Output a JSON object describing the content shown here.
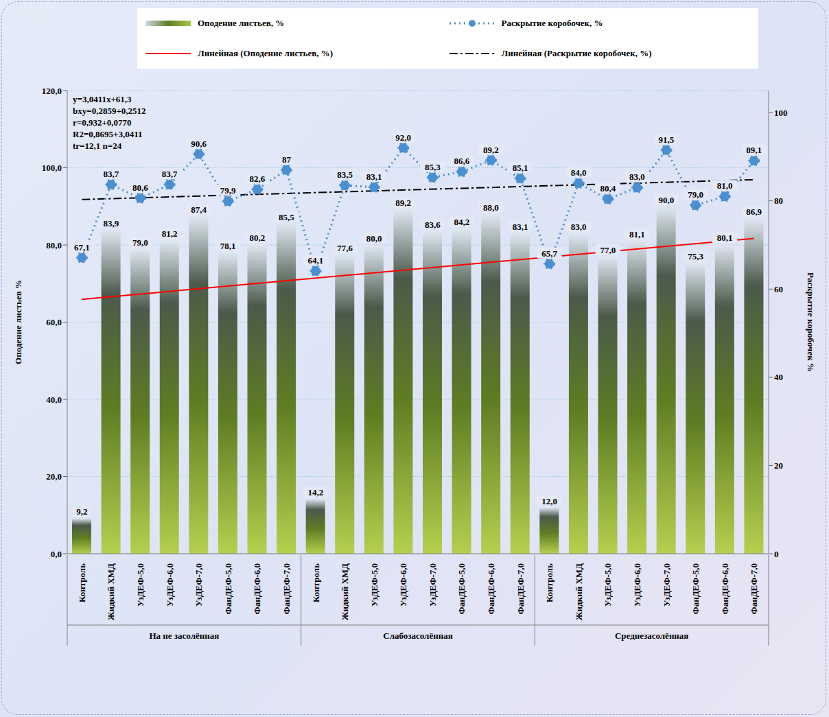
{
  "chart_data": {
    "type": "bar",
    "categories": [
      "Контроль",
      "Жидкий ХМД",
      "УзДЕФ-5,0",
      "УзДЕФ-6,0",
      "УзДЕФ-7,0",
      "ФанДЕФ-5,0",
      "ФанДЕФ-6,0",
      "ФанДЕФ-7,0",
      "Контроль",
      "Жидкий ХМД",
      "УзДЕФ-5,0",
      "УзДЕФ-6,0",
      "УзДЕФ-7,0",
      "ФанДЕФ-5,0",
      "ФанДЕФ-6,0",
      "ФанДЕФ-7,0",
      "Контроль",
      "Жидкий ХМД",
      "УзДЕФ-5,0",
      "УзДЕФ-6,0",
      "УзДЕФ-7,0",
      "ФанДЕФ-5,0",
      "ФанДЕФ-6,0",
      "ФанДЕФ-7,0"
    ],
    "category_groups": [
      "На не засолённая",
      "На не засолённая",
      "На не засолённая",
      "На не засолённая",
      "На не засолённая",
      "На не засолённая",
      "На не засолённая",
      "На не засолённая",
      "Слабозасолённая",
      "Слабозасолённая",
      "Слабозасолённая",
      "Слабозасолённая",
      "Слабозасолённая",
      "Слабозасолённая",
      "Слабозасолённая",
      "Слабозасолённая",
      "Среднезасолённая",
      "Среднезасолённая",
      "Среднезасолённая",
      "Среднезасолённая",
      "Среднезасолённая",
      "Среднезасолённая",
      "Среднезасолённая",
      "Среднезасолённая"
    ],
    "y_label": "Оподение листьев %",
    "y2_label": "Раскрытие коробочек %",
    "ylim": [
      0,
      120
    ],
    "yticks": [
      {
        "value": 0,
        "label": "0,0"
      },
      {
        "value": 20,
        "label": "20,0"
      },
      {
        "value": 40,
        "label": "40,0"
      },
      {
        "value": 60,
        "label": "60,0"
      },
      {
        "value": 80,
        "label": "80,0"
      },
      {
        "value": 100,
        "label": "100,0"
      },
      {
        "value": 120,
        "label": "120,0"
      }
    ],
    "y2lim": [
      0,
      105
    ],
    "y2ticks": [
      0,
      20,
      40,
      60,
      80,
      100
    ],
    "annotations": [
      "y=3,0411x+61,3",
      "bxy=0,2859+0,2512",
      "r=0,932+0,0770",
      "R2=0,8695+3,0411",
      "tr=12,1 n=24"
    ],
    "legend": "top",
    "grid": true,
    "series": [
      {
        "name": "Оподение листьев, %",
        "type": "bar",
        "color": "#5e7d22",
        "data_labels": true,
        "values": [
          9.2,
          83.9,
          79.0,
          81.2,
          87.4,
          78.1,
          80.2,
          85.5,
          14.2,
          77.6,
          80.0,
          89.2,
          83.6,
          84.2,
          88.0,
          83.1,
          12.0,
          83.0,
          77.0,
          81.1,
          90.0,
          75.3,
          80.1,
          86.9
        ],
        "value_labels": [
          "9,2",
          "83,9",
          "79,0",
          "81,2",
          "87,4",
          "78,1",
          "80,2",
          "85,5",
          "14,2",
          "77,6",
          "80,0",
          "89,2",
          "83,6",
          "84,2",
          "88,0",
          "83,1",
          "12,0",
          "83,0",
          "77,0",
          "81,1",
          "90,0",
          "75,3",
          "80,1",
          "86,9"
        ]
      },
      {
        "name": "Раскрытие коробочек, %",
        "type": "line",
        "axis": "y2",
        "color": "#4a8fd0",
        "marker": "circle",
        "line_style": "dotted",
        "data_labels": true,
        "values": [
          67.1,
          83.7,
          80.6,
          83.7,
          90.6,
          79.9,
          82.6,
          87,
          64.1,
          83.5,
          83.1,
          92.0,
          85.3,
          86.6,
          89.2,
          85.1,
          65.7,
          84.0,
          80.4,
          83.0,
          91.5,
          79.0,
          81.0,
          89.1
        ],
        "value_labels": [
          "67,1",
          "83,7",
          "80,6",
          "83,7",
          "90,6",
          "79,9",
          "82,6",
          "87",
          "64,1",
          "83,5",
          "83,1",
          "92,0",
          "85,3",
          "86,6",
          "89,2",
          "85,1",
          "65,7",
          "84,0",
          "80,4",
          "83,0",
          "91,5",
          "79,0",
          "81,0",
          "89,1"
        ]
      },
      {
        "name": "Линейная (Оподение листьев, %)",
        "type": "line",
        "color": "#ff0000",
        "marker": "none",
        "line_style": "solid",
        "values": [
          65.9,
          null,
          null,
          null,
          null,
          null,
          null,
          null,
          null,
          null,
          null,
          null,
          null,
          null,
          null,
          null,
          null,
          null,
          null,
          null,
          null,
          null,
          null,
          81.7
        ]
      },
      {
        "name": "Линейная (Раскрытие коробочек, %)",
        "type": "line",
        "axis": "y2",
        "color": "#000000",
        "marker": "none",
        "line_style": "dashdot",
        "values": [
          80.3,
          null,
          null,
          null,
          null,
          null,
          null,
          null,
          null,
          null,
          null,
          null,
          null,
          null,
          null,
          null,
          null,
          null,
          null,
          null,
          null,
          null,
          null,
          84.8
        ]
      }
    ]
  }
}
